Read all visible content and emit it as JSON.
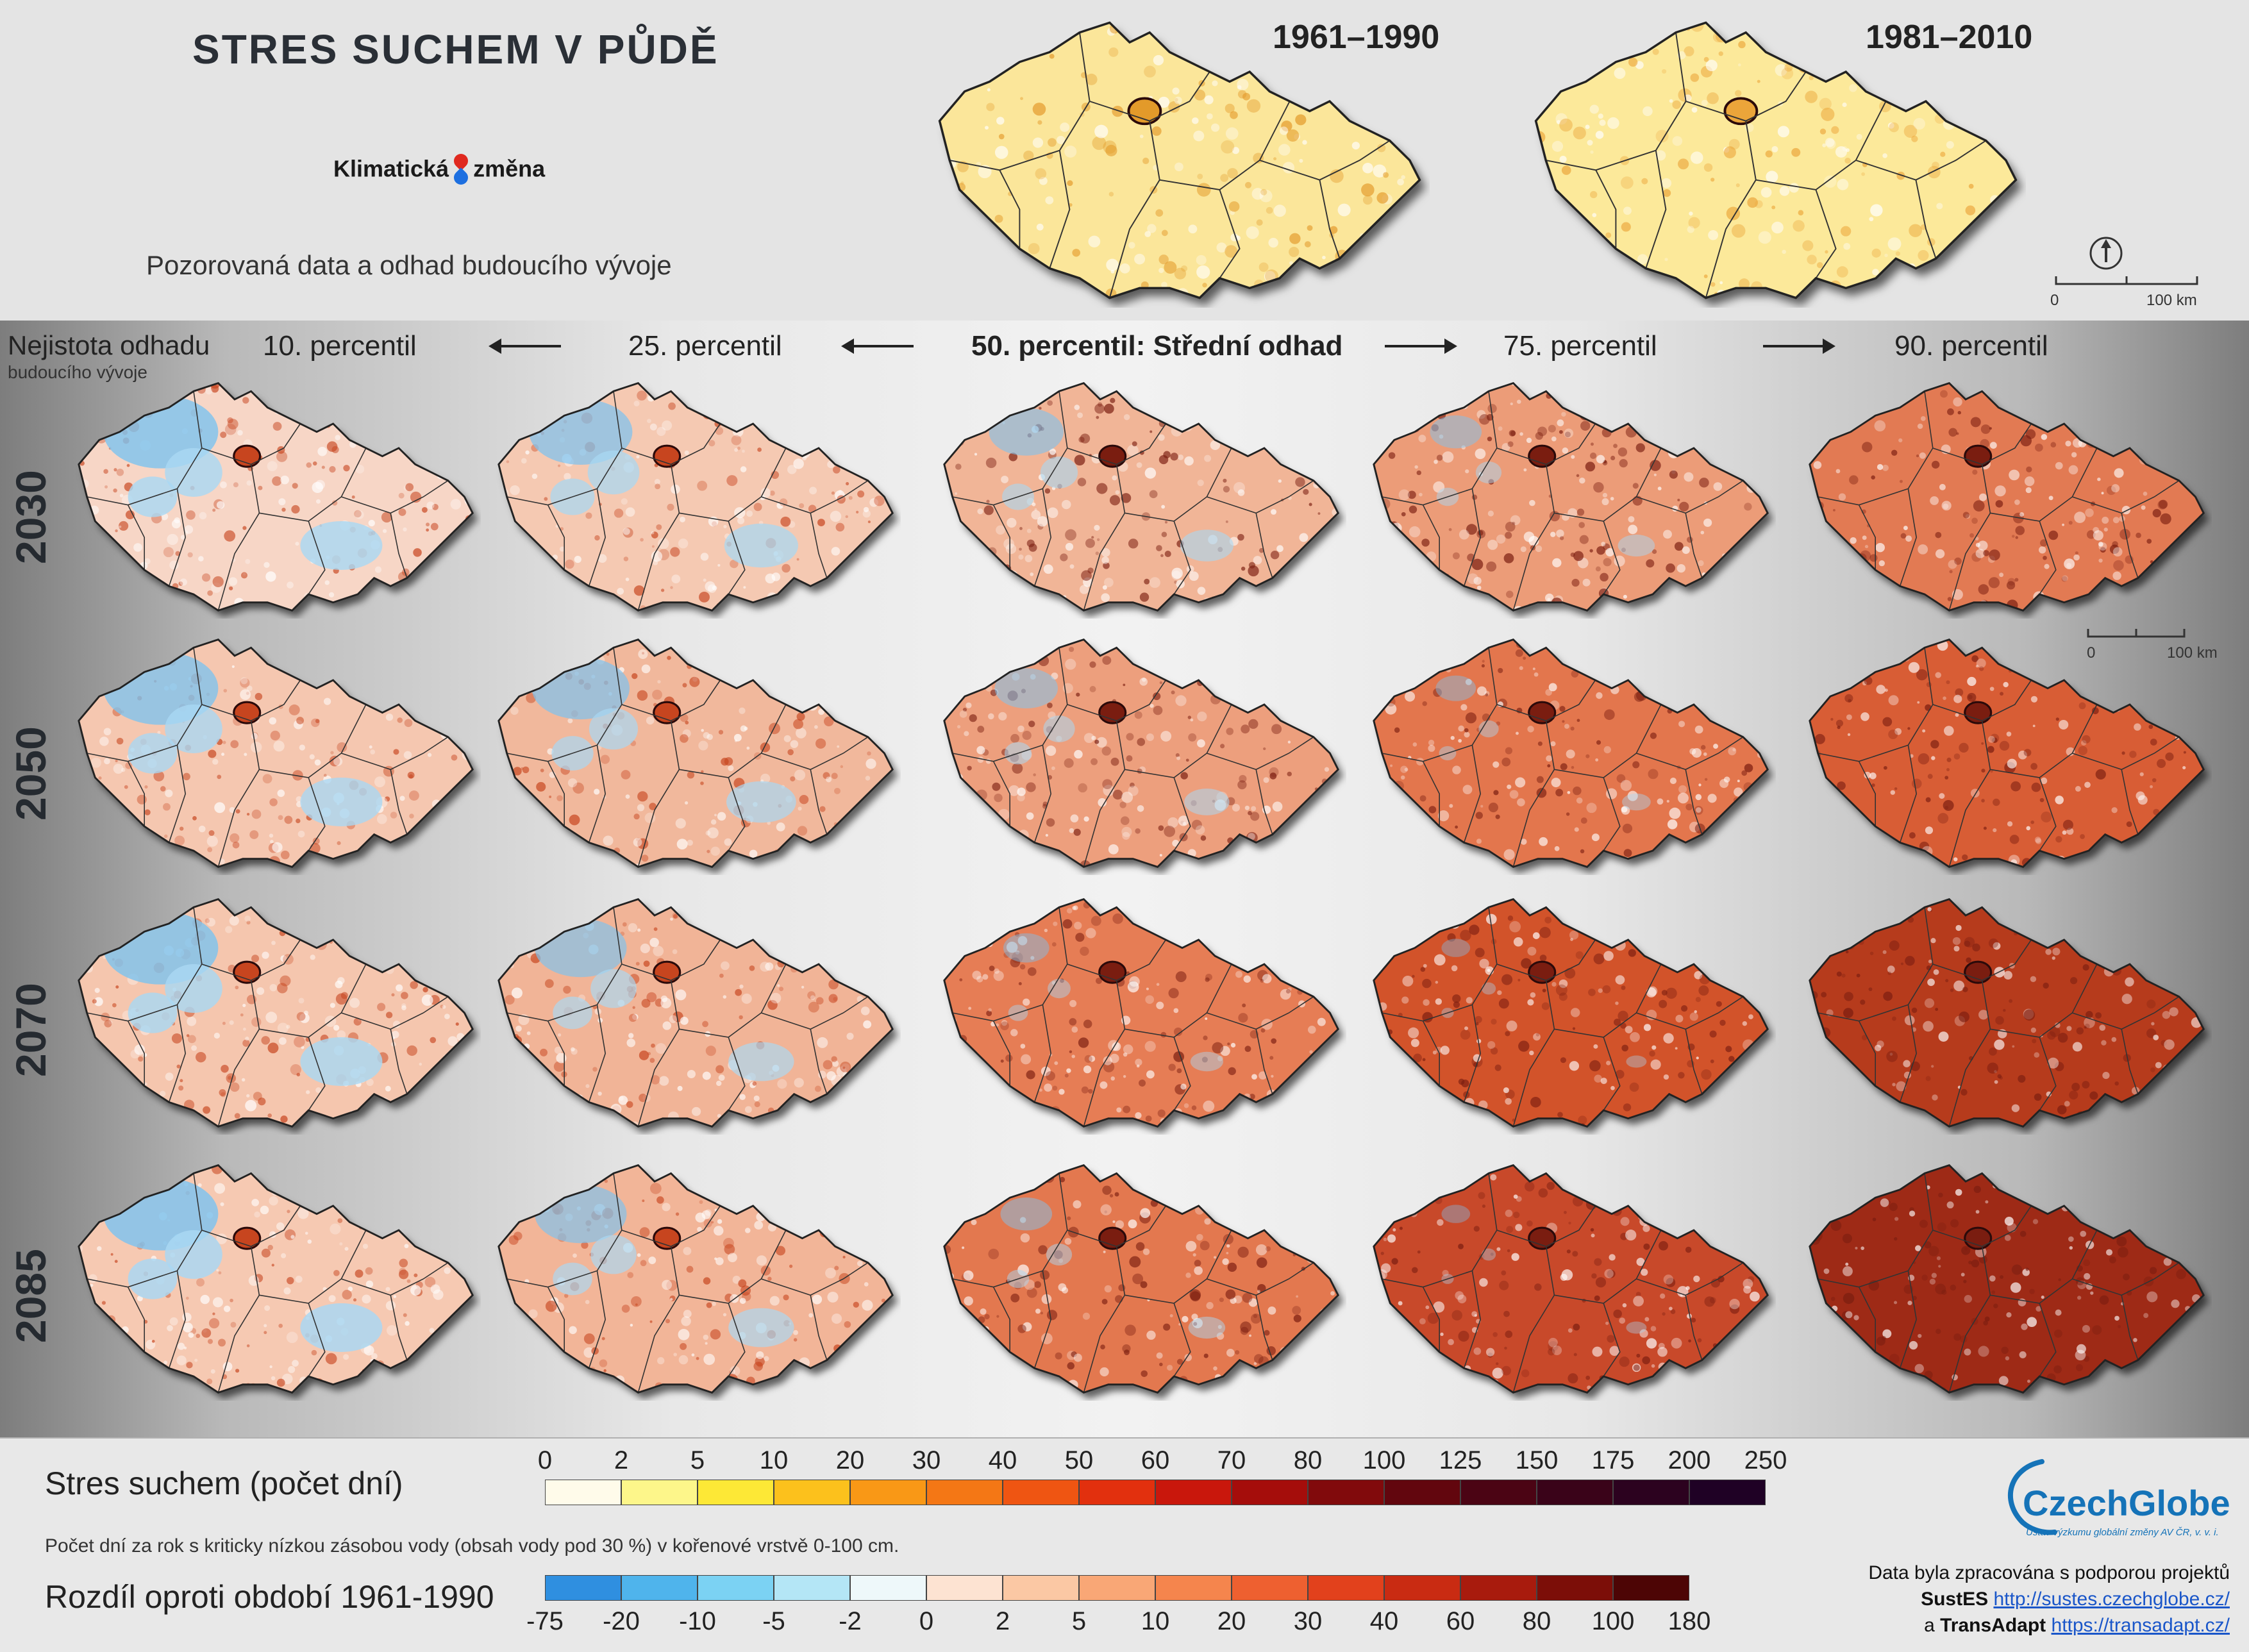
{
  "header": {
    "title": "STRES SUCHEM V PŮDĚ",
    "subtitle": "Pozorovaná data a odhad budoucího vývoje",
    "logo_left": "Klimatická",
    "logo_right": "změna"
  },
  "observed": [
    {
      "label": "1961–1990",
      "fill": "#fbe69a",
      "hot": "#e39a2a"
    },
    {
      "label": "1981–2010",
      "fill": "#fce99a",
      "hot": "#eba53a"
    }
  ],
  "uncertainty": {
    "line1": "Nejistota odhadu",
    "line2": "budoucího vývoje"
  },
  "percentiles": [
    {
      "label": "10. percentil"
    },
    {
      "label": "25. percentil"
    },
    {
      "label": "50. percentil: Střední odhad"
    },
    {
      "label": "75. percentil"
    },
    {
      "label": "90. percentil"
    }
  ],
  "years": [
    "2030",
    "2050",
    "2070",
    "2085"
  ],
  "map_grid": [
    [
      {
        "fill": "#f7d6c6",
        "blue": 0.85
      },
      {
        "fill": "#f5c9b2",
        "blue": 0.7
      },
      {
        "fill": "#f1b597",
        "blue": 0.45
      },
      {
        "fill": "#ec9c78",
        "blue": 0.25
      },
      {
        "fill": "#e27a52",
        "blue": 0.0
      }
    ],
    [
      {
        "fill": "#f5c7b0",
        "blue": 0.8
      },
      {
        "fill": "#f1b89c",
        "blue": 0.65
      },
      {
        "fill": "#ed9f7d",
        "blue": 0.35
      },
      {
        "fill": "#e3764e",
        "blue": 0.15
      },
      {
        "fill": "#d85d36",
        "blue": 0.0
      }
    ],
    [
      {
        "fill": "#f5c6ae",
        "blue": 0.85
      },
      {
        "fill": "#f1b497",
        "blue": 0.6
      },
      {
        "fill": "#e67d55",
        "blue": 0.2
      },
      {
        "fill": "#d2522c",
        "blue": 0.05
      },
      {
        "fill": "#b63a1f",
        "blue": 0.0
      }
    ],
    [
      {
        "fill": "#f6c9b2",
        "blue": 0.9
      },
      {
        "fill": "#f2b598",
        "blue": 0.6
      },
      {
        "fill": "#e37850",
        "blue": 0.25
      },
      {
        "fill": "#c8492a",
        "blue": 0.05
      },
      {
        "fill": "#9e2c19",
        "blue": 0.0
      }
    ]
  ],
  "scale": {
    "zero": "0",
    "dist": "100 km"
  },
  "legend_stress": {
    "title": "Stres suchem (počet dní)",
    "ticks": [
      "0",
      "2",
      "5",
      "10",
      "20",
      "30",
      "40",
      "50",
      "60",
      "70",
      "80",
      "100",
      "125",
      "150",
      "175",
      "200",
      "250"
    ],
    "colors": [
      "#fffbea",
      "#fdf68a",
      "#fde836",
      "#fcc11c",
      "#f99816",
      "#f47715",
      "#ef5512",
      "#e2300e",
      "#c9170c",
      "#a50d0b",
      "#810a0c",
      "#62060e",
      "#4b0414",
      "#3a0319",
      "#2c021f",
      "#1f0125"
    ]
  },
  "legend_note": "Počet dní za rok s kriticky nízkou zásobou vody (obsah vody pod 30 %) v kořenové vrstvě 0-100 cm.",
  "legend_diff": {
    "title": "Rozdíl oproti období 1961-1990",
    "ticks": [
      "-75",
      "-20",
      "-10",
      "-5",
      "-2",
      "0",
      "2",
      "5",
      "10",
      "20",
      "30",
      "40",
      "60",
      "80",
      "100",
      "180"
    ],
    "colors": [
      "#2f8fe0",
      "#4fb4ec",
      "#7bd2f3",
      "#b4e6f6",
      "#eef8fa",
      "#fde3d2",
      "#fbc8a4",
      "#f9a776",
      "#f5854d",
      "#ee6030",
      "#e2411c",
      "#c92b12",
      "#a81b0d",
      "#7c0e08",
      "#4d0505"
    ]
  },
  "credits": {
    "line1": "Data byla zpracována s podporou projektů",
    "sustes_label": "SustES",
    "sustes_url": "http://sustes.czechglobe.cz/",
    "and": "a",
    "transadapt_label": "TransAdapt",
    "transadapt_url": "https://transadapt.cz/"
  },
  "czechglobe": {
    "name": "CzechGlobe",
    "sub": "Ústav výzkumu globální změny AV ČR, v. v. i."
  }
}
